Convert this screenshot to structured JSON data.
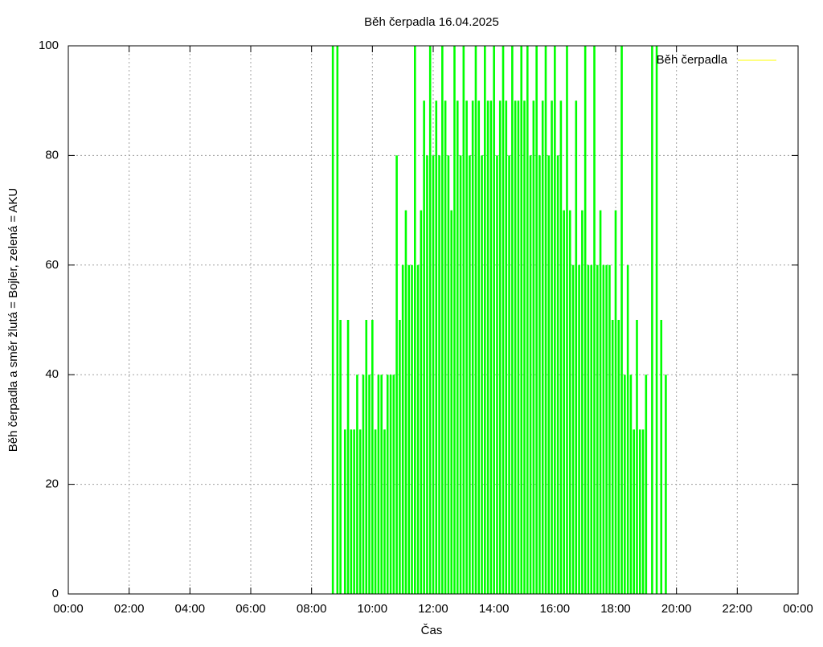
{
  "chart_data": {
    "type": "impulse",
    "title": "Běh čerpadla 16.04.2025",
    "x_label": "Čas",
    "y_label": "Běh čerpadla a směr žlutá = Bojler, zelená = AKU",
    "legend_position": "top-right",
    "grid": true,
    "xlim": [
      0,
      24
    ],
    "xticks": [
      {
        "value": 0,
        "label": "00:00"
      },
      {
        "value": 2,
        "label": "02:00"
      },
      {
        "value": 4,
        "label": "04:00"
      },
      {
        "value": 6,
        "label": "06:00"
      },
      {
        "value": 8,
        "label": "08:00"
      },
      {
        "value": 10,
        "label": "10:00"
      },
      {
        "value": 12,
        "label": "12:00"
      },
      {
        "value": 14,
        "label": "14:00"
      },
      {
        "value": 16,
        "label": "16:00"
      },
      {
        "value": 18,
        "label": "18:00"
      },
      {
        "value": 20,
        "label": "20:00"
      },
      {
        "value": 22,
        "label": "22:00"
      },
      {
        "value": 24,
        "label": "00:00"
      }
    ],
    "ylim": [
      0,
      100
    ],
    "yticks": [
      0,
      20,
      40,
      60,
      80,
      100
    ],
    "series": [
      {
        "name": "Běh čerpadla",
        "color": "#00ff00",
        "legend_color": "#ffff00",
        "x": [
          8.7,
          8.85,
          8.95,
          9.1,
          9.2,
          9.3,
          9.4,
          9.5,
          9.6,
          9.7,
          9.8,
          9.9,
          10.0,
          10.1,
          10.2,
          10.3,
          10.4,
          10.5,
          10.6,
          10.7,
          10.8,
          10.9,
          11.0,
          11.1,
          11.2,
          11.3,
          11.4,
          11.5,
          11.6,
          11.7,
          11.8,
          11.9,
          12.0,
          12.1,
          12.2,
          12.3,
          12.4,
          12.5,
          12.6,
          12.7,
          12.8,
          12.9,
          13.0,
          13.1,
          13.2,
          13.3,
          13.4,
          13.5,
          13.6,
          13.7,
          13.8,
          13.9,
          14.0,
          14.1,
          14.2,
          14.3,
          14.4,
          14.5,
          14.6,
          14.7,
          14.8,
          14.9,
          15.0,
          15.1,
          15.2,
          15.3,
          15.4,
          15.5,
          15.6,
          15.7,
          15.8,
          15.9,
          16.0,
          16.1,
          16.2,
          16.3,
          16.4,
          16.5,
          16.6,
          16.7,
          16.8,
          16.9,
          17.0,
          17.1,
          17.2,
          17.3,
          17.4,
          17.5,
          17.6,
          17.7,
          17.8,
          17.9,
          18.0,
          18.1,
          18.2,
          18.3,
          18.4,
          18.5,
          18.6,
          18.7,
          18.8,
          18.9,
          19.0,
          19.2,
          19.35,
          19.5,
          19.65
        ],
        "values": [
          100,
          100,
          50,
          30,
          50,
          30,
          30,
          40,
          30,
          40,
          50,
          40,
          50,
          30,
          40,
          40,
          30,
          40,
          40,
          40,
          80,
          50,
          60,
          70,
          60,
          60,
          100,
          60,
          70,
          90,
          80,
          100,
          80,
          90,
          80,
          100,
          90,
          80,
          70,
          100,
          90,
          80,
          100,
          90,
          80,
          90,
          100,
          90,
          80,
          100,
          90,
          90,
          100,
          80,
          90,
          100,
          90,
          80,
          100,
          90,
          90,
          100,
          90,
          100,
          80,
          90,
          100,
          80,
          90,
          100,
          80,
          90,
          100,
          80,
          90,
          70,
          100,
          70,
          60,
          90,
          60,
          70,
          100,
          60,
          60,
          100,
          60,
          70,
          60,
          60,
          60,
          50,
          70,
          50,
          100,
          40,
          60,
          40,
          30,
          50,
          30,
          30,
          40,
          100,
          100,
          50,
          40
        ]
      }
    ]
  }
}
